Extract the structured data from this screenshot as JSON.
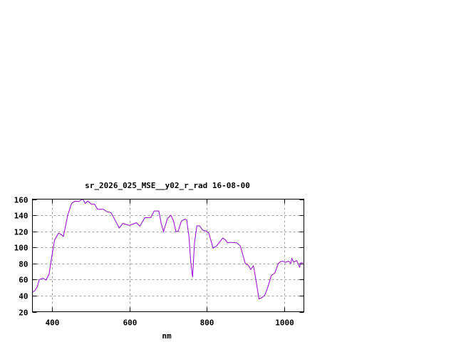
{
  "chart_data": {
    "type": "line",
    "title": "sr_2026_025_MSE__y02_r_rad 16-08-00",
    "xlabel": "nm",
    "ylabel": "",
    "xlim": [
      350,
      1050
    ],
    "ylim": [
      20,
      160
    ],
    "xticks": [
      400,
      600,
      800,
      1000
    ],
    "yticks": [
      20,
      40,
      60,
      80,
      100,
      120,
      140,
      160
    ],
    "grid": true,
    "line_color": "#9400d3",
    "series": [
      {
        "x": [
          350,
          356,
          362,
          368,
          377,
          385,
          393,
          399,
          407,
          417,
          423,
          430,
          441,
          451,
          460,
          469,
          480,
          486,
          493,
          502,
          510,
          518,
          533,
          542,
          553,
          563,
          574,
          583,
          600,
          618,
          627,
          640,
          655,
          664,
          676,
          682,
          688,
          698,
          707,
          714,
          720,
          726,
          734,
          743,
          748,
          754,
          758,
          763,
          768,
          774,
          781,
          789,
          798,
          805,
          816,
          825,
          841,
          848,
          853,
          859,
          877,
          886,
          899,
          907,
          913,
          920,
          926,
          934,
          941,
          949,
          956,
          966,
          975,
          984,
          990,
          996,
          1002,
          1011,
          1016,
          1019,
          1024,
          1031,
          1039,
          1042,
          1048
        ],
        "y": [
          44.7,
          46,
          50.6,
          60,
          61.7,
          59.4,
          66.7,
          86,
          109,
          117.5,
          116.6,
          113.6,
          140,
          154.7,
          157.6,
          157,
          160,
          154.7,
          157.6,
          153.8,
          153.8,
          147.4,
          147.4,
          144.4,
          143,
          134,
          124,
          129.8,
          127.4,
          130.7,
          126.3,
          137,
          137,
          145.3,
          145.3,
          130,
          119.5,
          135.6,
          140,
          132.7,
          119.5,
          120.4,
          132.7,
          135,
          134,
          112,
          82.8,
          63,
          106,
          126.8,
          126.8,
          121.5,
          120.4,
          117.5,
          99,
          101.9,
          111.6,
          109.2,
          105.7,
          106.3,
          105.7,
          101.9,
          80,
          77.5,
          72.6,
          77,
          60.8,
          36,
          37.4,
          40.3,
          49,
          65,
          68.2,
          80,
          82.3,
          82.8,
          81.4,
          82.8,
          80,
          86.3,
          81.4,
          83.7,
          75.5,
          80.8,
          80.8
        ]
      }
    ]
  }
}
